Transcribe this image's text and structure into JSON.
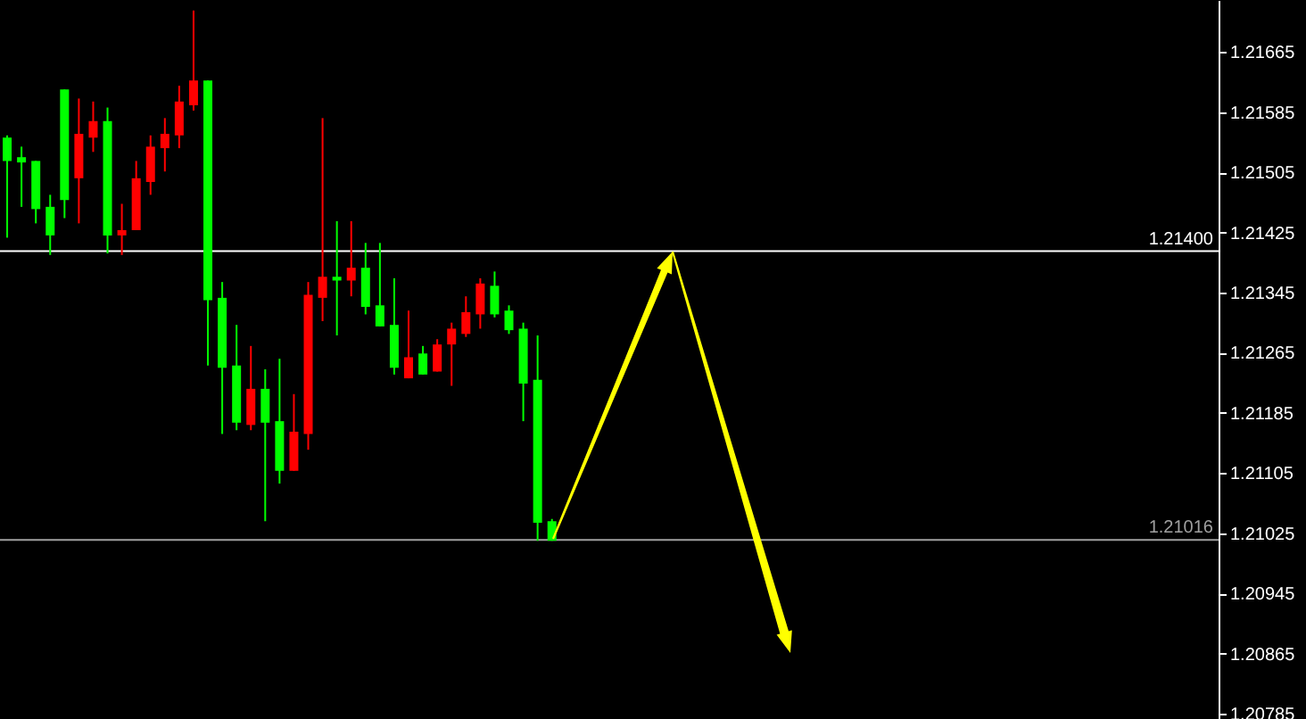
{
  "chart_data": {
    "type": "candlestick",
    "categories": [
      null,
      null,
      null,
      null,
      null,
      null,
      null,
      null,
      null,
      null,
      null,
      null,
      null,
      null,
      null,
      null,
      null,
      null,
      null,
      null,
      null,
      null,
      null,
      null,
      null,
      null,
      null,
      null,
      null,
      null,
      null,
      null,
      null,
      null,
      null,
      null,
      null,
      null,
      null,
      null,
      null,
      null,
      null,
      null,
      null,
      null,
      null,
      null,
      null,
      null,
      null,
      null,
      null,
      null,
      null,
      null,
      null,
      null,
      null,
      null,
      null,
      null,
      null,
      null,
      null,
      null,
      null,
      null,
      null,
      null,
      null,
      null,
      null,
      null,
      null,
      null,
      null,
      null,
      null,
      null,
      null,
      null,
      null,
      null,
      null
    ],
    "ohlc": [
      [
        1.21551,
        1.21554,
        1.21418,
        1.2152
      ],
      [
        1.21525,
        1.21539,
        1.21459,
        1.21518
      ],
      [
        1.2152,
        1.2152,
        1.21437,
        1.21456
      ],
      [
        1.21459,
        1.21475,
        1.21395,
        1.21421
      ],
      [
        1.21615,
        1.21615,
        1.21444,
        1.21468
      ],
      [
        1.21497,
        1.21603,
        1.21437,
        1.21556
      ],
      [
        1.21551,
        1.21599,
        1.21532,
        1.21573
      ],
      [
        1.21573,
        1.21591,
        1.21397,
        1.21421
      ],
      [
        1.21421,
        1.21463,
        1.21395,
        1.21428
      ],
      [
        1.21428,
        1.2152,
        1.21428,
        1.21497
      ],
      [
        1.21492,
        1.21554,
        1.21475,
        1.21539
      ],
      [
        1.21537,
        1.21577,
        1.21506,
        1.21556
      ],
      [
        1.21554,
        1.2162,
        1.21537,
        1.21599
      ],
      [
        1.21594,
        1.2172,
        1.21587,
        1.21627
      ],
      [
        1.21627,
        1.21627,
        1.21248,
        1.21335
      ],
      [
        1.21338,
        1.21359,
        1.21157,
        1.21245
      ],
      [
        1.21248,
        1.21302,
        1.21162,
        1.21172
      ],
      [
        1.21169,
        1.21274,
        1.21162,
        1.21217
      ],
      [
        1.21217,
        1.21243,
        1.21041,
        1.21172
      ],
      [
        1.21174,
        1.21257,
        1.21091,
        1.21108
      ],
      [
        1.21108,
        1.2121,
        1.21108,
        1.2116
      ],
      [
        1.21157,
        1.21359,
        1.21136,
        1.21342
      ],
      [
        1.21338,
        1.21577,
        1.21307,
        1.21366
      ],
      [
        1.21366,
        1.2144,
        1.21288,
        1.21361
      ],
      [
        1.21361,
        1.2144,
        1.2134,
        1.21378
      ],
      [
        1.21378,
        1.21411,
        1.21316,
        1.21326
      ],
      [
        1.21328,
        1.21411,
        1.213,
        1.213
      ],
      [
        1.21302,
        1.21364,
        1.21236,
        1.21245
      ],
      [
        1.21231,
        1.21321,
        1.21231,
        1.21259
      ],
      [
        1.21264,
        1.21274,
        1.21236,
        1.21236
      ],
      [
        1.2124,
        1.21283,
        1.2124,
        1.21276
      ],
      [
        1.21276,
        1.21305,
        1.21221,
        1.21297
      ],
      [
        1.2129,
        1.2134,
        1.21286,
        1.21319
      ],
      [
        1.21316,
        1.21364,
        1.21297,
        1.21357
      ],
      [
        1.21354,
        1.21373,
        1.21312,
        1.21316
      ],
      [
        1.21321,
        1.21328,
        1.2129,
        1.21295
      ],
      [
        1.21297,
        1.21305,
        1.21174,
        1.21224
      ],
      [
        1.21229,
        1.21288,
        1.21015,
        1.21039
      ],
      [
        1.21041,
        1.21044,
        1.21015,
        1.21015
      ],
      null,
      null,
      null,
      null,
      null,
      null,
      null,
      null,
      null,
      null,
      null,
      null,
      null,
      null,
      null,
      null,
      null,
      null,
      null,
      null,
      null,
      null,
      null,
      null,
      null,
      null,
      null,
      null,
      null,
      null,
      null,
      null,
      null,
      null,
      null,
      null,
      null,
      null,
      null,
      null,
      null,
      null,
      null,
      null,
      null,
      null
    ],
    "colors": [
      "#00ff00",
      "#00ff00",
      "#00ff00",
      "#00ff00",
      "#00ff00",
      "#ff0000",
      "#ff0000",
      "#00ff00",
      "#ff0000",
      "#ff0000",
      "#ff0000",
      "#ff0000",
      "#ff0000",
      "#ff0000",
      "#00ff00",
      "#00ff00",
      "#00ff00",
      "#ff0000",
      "#00ff00",
      "#00ff00",
      "#ff0000",
      "#ff0000",
      "#ff0000",
      "#00ff00",
      "#ff0000",
      "#00ff00",
      "#00ff00",
      "#00ff00",
      "#ff0000",
      "#00ff00",
      "#ff0000",
      "#ff0000",
      "#ff0000",
      "#ff0000",
      "#00ff00",
      "#00ff00",
      "#00ff00",
      "#00ff00",
      "#00ff00",
      null,
      null,
      null,
      null,
      null,
      null,
      null,
      null,
      null,
      null,
      null,
      null,
      null,
      null,
      null,
      null,
      null,
      null,
      null,
      null,
      null,
      null,
      null,
      null,
      null,
      null,
      null,
      null,
      null,
      null,
      null,
      null,
      null,
      null,
      null,
      null,
      null,
      null,
      null,
      null,
      null,
      null,
      null,
      null,
      null,
      null
    ],
    "ylim": [
      1.20778,
      1.21734
    ],
    "yticks": [
      1.20785,
      1.20865,
      1.20945,
      1.21025,
      1.21105,
      1.21185,
      1.21265,
      1.21345,
      1.21425,
      1.21505,
      1.21585,
      1.21665
    ],
    "ref_lines": [
      {
        "axis": "y",
        "value": 1.214,
        "label": "1.21400",
        "color": "#ffffff"
      },
      {
        "axis": "y",
        "value": 1.21016,
        "label": "1.21016",
        "color": "#a0a0a0"
      }
    ]
  }
}
